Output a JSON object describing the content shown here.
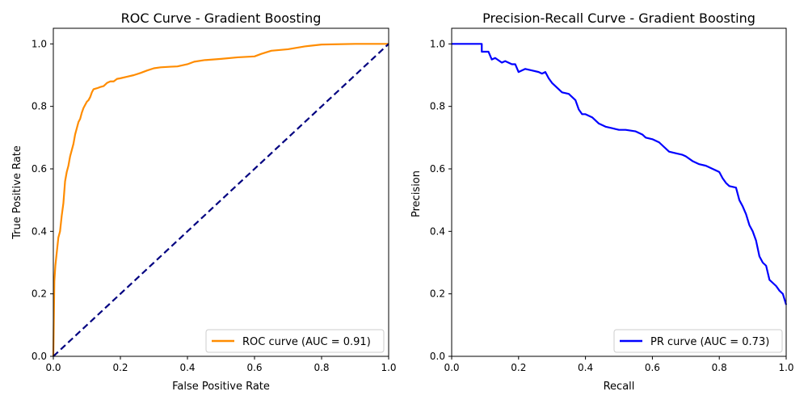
{
  "figure": {
    "background": "#ffffff"
  },
  "chart_data": [
    {
      "type": "line",
      "title": "ROC Curve - Gradient Boosting",
      "xlabel": "False Positive Rate",
      "ylabel": "True Positive Rate",
      "xlim": [
        0.0,
        1.0
      ],
      "ylim": [
        0.0,
        1.05
      ],
      "xticks": [
        "0.0",
        "0.2",
        "0.4",
        "0.6",
        "0.8",
        "1.0"
      ],
      "yticks": [
        "0.0",
        "0.2",
        "0.4",
        "0.6",
        "0.8",
        "1.0"
      ],
      "grid": false,
      "legend": {
        "position": "lower-right",
        "entries": [
          "ROC curve (AUC = 0.91)"
        ]
      },
      "series": [
        {
          "name": "ROC curve (AUC = 0.91)",
          "color": "#ff8c00",
          "style": "solid",
          "x": [
            0.0,
            0.003,
            0.006,
            0.01,
            0.015,
            0.02,
            0.025,
            0.03,
            0.035,
            0.04,
            0.045,
            0.05,
            0.055,
            0.06,
            0.065,
            0.07,
            0.075,
            0.08,
            0.085,
            0.09,
            0.095,
            0.1,
            0.105,
            0.11,
            0.115,
            0.12,
            0.13,
            0.135,
            0.14,
            0.15,
            0.16,
            0.17,
            0.18,
            0.19,
            0.2,
            0.22,
            0.24,
            0.26,
            0.28,
            0.3,
            0.32,
            0.35,
            0.37,
            0.4,
            0.42,
            0.45,
            0.5,
            0.55,
            0.6,
            0.62,
            0.65,
            0.7,
            0.75,
            0.8,
            0.9,
            1.0
          ],
          "y": [
            0.0,
            0.24,
            0.29,
            0.33,
            0.38,
            0.4,
            0.45,
            0.49,
            0.56,
            0.59,
            0.61,
            0.64,
            0.66,
            0.68,
            0.71,
            0.73,
            0.75,
            0.76,
            0.78,
            0.795,
            0.805,
            0.815,
            0.82,
            0.83,
            0.845,
            0.855,
            0.858,
            0.86,
            0.862,
            0.865,
            0.875,
            0.88,
            0.88,
            0.888,
            0.89,
            0.895,
            0.9,
            0.907,
            0.915,
            0.922,
            0.925,
            0.927,
            0.928,
            0.935,
            0.943,
            0.948,
            0.952,
            0.957,
            0.96,
            0.968,
            0.978,
            0.983,
            0.992,
            0.998,
            1.0,
            1.0
          ]
        },
        {
          "color": "#000080",
          "style": "dashed",
          "x": [
            0.0,
            1.0
          ],
          "y": [
            0.0,
            1.0
          ]
        }
      ]
    },
    {
      "type": "line",
      "title": "Precision-Recall Curve - Gradient Boosting",
      "xlabel": "Recall",
      "ylabel": "Precision",
      "xlim": [
        0.0,
        1.0
      ],
      "ylim": [
        0.0,
        1.05
      ],
      "xticks": [
        "0.0",
        "0.2",
        "0.4",
        "0.6",
        "0.8",
        "1.0"
      ],
      "yticks": [
        "0.0",
        "0.2",
        "0.4",
        "0.6",
        "0.8",
        "1.0"
      ],
      "grid": false,
      "legend": {
        "position": "lower-right",
        "entries": [
          "PR curve (AUC = 0.73)"
        ]
      },
      "series": [
        {
          "name": "PR curve (AUC = 0.73)",
          "color": "#0000ff",
          "style": "solid",
          "x": [
            0.0,
            0.09,
            0.09,
            0.11,
            0.12,
            0.13,
            0.15,
            0.16,
            0.18,
            0.19,
            0.2,
            0.22,
            0.24,
            0.26,
            0.27,
            0.28,
            0.29,
            0.3,
            0.31,
            0.32,
            0.33,
            0.35,
            0.36,
            0.37,
            0.38,
            0.39,
            0.4,
            0.42,
            0.44,
            0.46,
            0.48,
            0.5,
            0.52,
            0.55,
            0.57,
            0.58,
            0.6,
            0.62,
            0.63,
            0.65,
            0.67,
            0.69,
            0.7,
            0.72,
            0.74,
            0.76,
            0.78,
            0.8,
            0.81,
            0.82,
            0.83,
            0.85,
            0.86,
            0.87,
            0.88,
            0.89,
            0.9,
            0.91,
            0.92,
            0.93,
            0.94,
            0.95,
            0.96,
            0.97,
            0.98,
            0.99,
            1.0
          ],
          "y": [
            1.0,
            1.0,
            0.975,
            0.975,
            0.95,
            0.955,
            0.94,
            0.945,
            0.935,
            0.935,
            0.91,
            0.92,
            0.915,
            0.91,
            0.905,
            0.91,
            0.89,
            0.875,
            0.865,
            0.855,
            0.845,
            0.84,
            0.83,
            0.82,
            0.79,
            0.775,
            0.775,
            0.765,
            0.745,
            0.735,
            0.73,
            0.725,
            0.725,
            0.72,
            0.71,
            0.7,
            0.695,
            0.685,
            0.675,
            0.655,
            0.65,
            0.645,
            0.64,
            0.625,
            0.615,
            0.61,
            0.6,
            0.59,
            0.57,
            0.555,
            0.545,
            0.54,
            0.5,
            0.48,
            0.455,
            0.42,
            0.4,
            0.37,
            0.32,
            0.3,
            0.29,
            0.245,
            0.235,
            0.225,
            0.21,
            0.2,
            0.165
          ]
        }
      ]
    }
  ]
}
